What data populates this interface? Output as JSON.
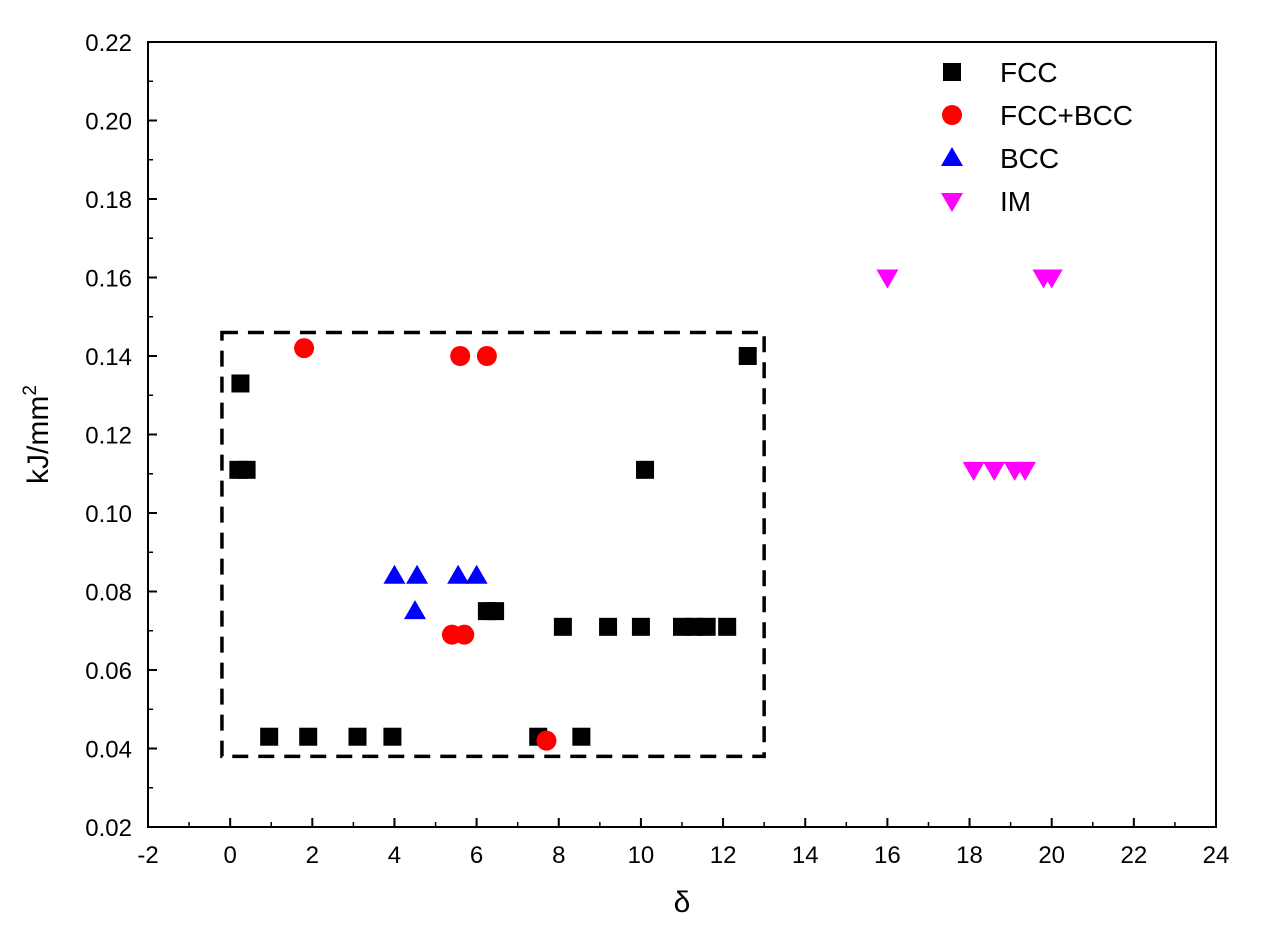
{
  "chart_data": {
    "type": "scatter",
    "xlabel": "δ",
    "ylabel": "kJ/mm",
    "ylabel_superscript": "2",
    "xlim": [
      -2,
      24
    ],
    "ylim": [
      0.02,
      0.22
    ],
    "xticks": [
      "-2",
      "0",
      "2",
      "4",
      "6",
      "8",
      "10",
      "12",
      "14",
      "16",
      "18",
      "20",
      "22",
      "24"
    ],
    "yticks": [
      "0.02",
      "0.04",
      "0.06",
      "0.08",
      "0.10",
      "0.12",
      "0.14",
      "0.16",
      "0.18",
      "0.20",
      "0.22"
    ],
    "grid": false,
    "legend_position": "top-right",
    "region_box": {
      "x": [
        -0.2,
        13
      ],
      "y": [
        0.038,
        0.146
      ],
      "style": "dashed"
    },
    "series": [
      {
        "name": "FCC",
        "marker": "square",
        "color": "#000000",
        "points": [
          [
            0.25,
            0.133
          ],
          [
            0.2,
            0.111
          ],
          [
            0.4,
            0.111
          ],
          [
            0.95,
            0.043
          ],
          [
            1.9,
            0.043
          ],
          [
            3.1,
            0.043
          ],
          [
            3.95,
            0.043
          ],
          [
            7.5,
            0.043
          ],
          [
            8.55,
            0.043
          ],
          [
            6.25,
            0.075
          ],
          [
            6.45,
            0.075
          ],
          [
            8.1,
            0.071
          ],
          [
            9.2,
            0.071
          ],
          [
            10.0,
            0.071
          ],
          [
            11.0,
            0.071
          ],
          [
            11.3,
            0.071
          ],
          [
            11.6,
            0.071
          ],
          [
            12.1,
            0.071
          ],
          [
            10.1,
            0.111
          ],
          [
            12.6,
            0.14
          ]
        ]
      },
      {
        "name": "FCC+BCC",
        "marker": "circle",
        "color": "#ff0000",
        "points": [
          [
            1.8,
            0.142
          ],
          [
            5.6,
            0.14
          ],
          [
            6.25,
            0.14
          ],
          [
            5.4,
            0.069
          ],
          [
            5.7,
            0.069
          ],
          [
            7.7,
            0.042
          ]
        ]
      },
      {
        "name": "BCC",
        "marker": "triangle-up",
        "color": "#0000ff",
        "points": [
          [
            4.0,
            0.084
          ],
          [
            4.55,
            0.084
          ],
          [
            5.55,
            0.084
          ],
          [
            6.0,
            0.084
          ],
          [
            4.5,
            0.075
          ]
        ]
      },
      {
        "name": "IM",
        "marker": "triangle-down",
        "color": "#ff00ff",
        "points": [
          [
            16.0,
            0.16
          ],
          [
            19.8,
            0.16
          ],
          [
            20.0,
            0.16
          ],
          [
            18.1,
            0.111
          ],
          [
            18.6,
            0.111
          ],
          [
            19.1,
            0.111
          ],
          [
            19.35,
            0.111
          ]
        ]
      }
    ]
  }
}
